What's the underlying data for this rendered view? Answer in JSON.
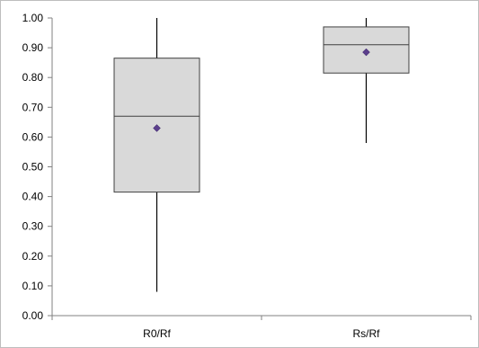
{
  "chart_data": {
    "type": "box",
    "title": "",
    "xlabel": "",
    "ylabel": "",
    "ylim": [
      0,
      1.0
    ],
    "yticks": [
      "0.00",
      "0.10",
      "0.20",
      "0.30",
      "0.40",
      "0.50",
      "0.60",
      "0.70",
      "0.80",
      "0.90",
      "1.00"
    ],
    "categories": [
      "R0/Rf",
      "Rs/Rf"
    ],
    "boxes": [
      {
        "category": "R0/Rf",
        "min": 0.08,
        "q1": 0.415,
        "median": 0.67,
        "q3": 0.865,
        "max": 1.0,
        "mean": 0.63
      },
      {
        "category": "Rs/Rf",
        "min": 0.58,
        "q1": 0.815,
        "median": 0.91,
        "q3": 0.97,
        "max": 1.0,
        "mean": 0.885
      }
    ],
    "grid": false,
    "legend": "none",
    "colors": {
      "box_fill": "#d9d9d9",
      "box_stroke": "#404040",
      "whisker": "#000000",
      "mean_marker": "#5b3f8c",
      "axis": "#808080"
    }
  }
}
